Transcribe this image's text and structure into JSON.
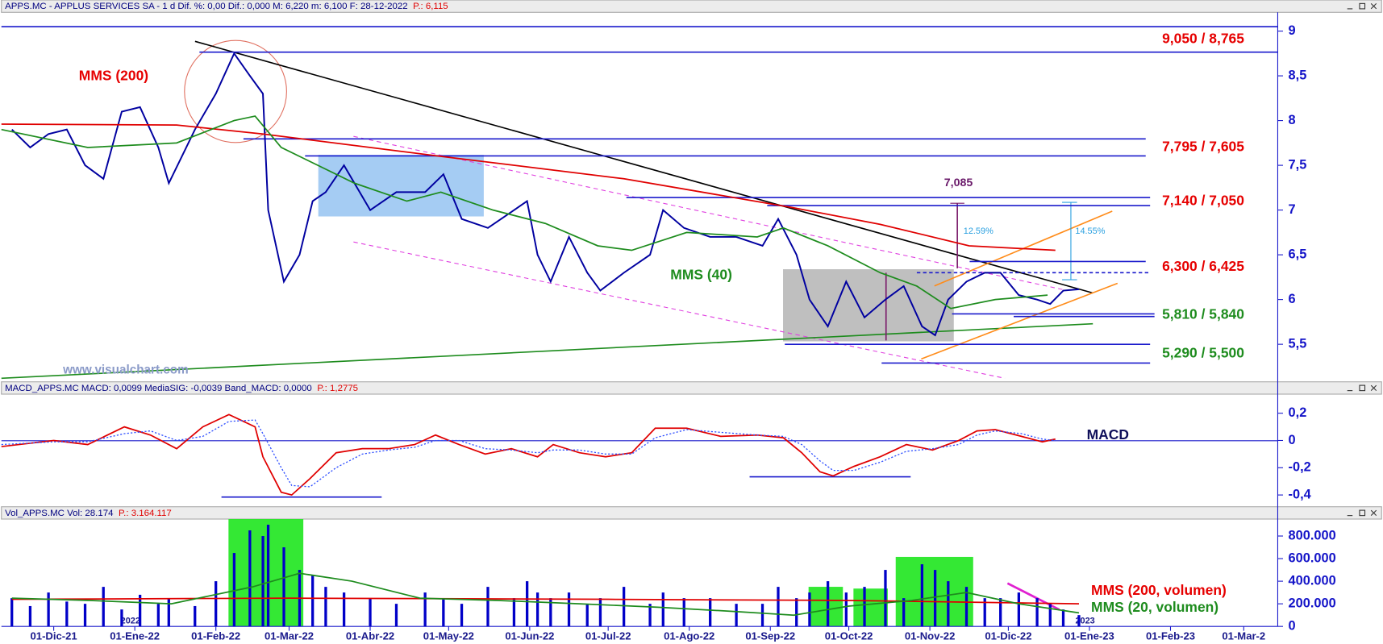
{
  "chart_data": [
    {
      "type": "line",
      "title": "APPS.MC - APPLUS SERVICES SA - 1 d  Dif. %: 0,00  Dif.: 0,000  M: 6,220  m: 6,100  F: 28-12-2022",
      "last": "P.: 6,115",
      "color": "#0000a0",
      "x": [
        "2021-11-15",
        "2021-11-22",
        "2021-11-29",
        "2021-12-06",
        "2021-12-13",
        "2021-12-20",
        "2021-12-27",
        "2022-01-03",
        "2022-01-10",
        "2022-01-14",
        "2022-01-24",
        "2022-02-01",
        "2022-02-08",
        "2022-02-14",
        "2022-02-19",
        "2022-02-21",
        "2022-02-27",
        "2022-03-05",
        "2022-03-10",
        "2022-03-15",
        "2022-03-22",
        "2022-04-01",
        "2022-04-11",
        "2022-04-22",
        "2022-04-29",
        "2022-05-06",
        "2022-05-16",
        "2022-05-26",
        "2022-05-31",
        "2022-06-04",
        "2022-06-09",
        "2022-06-16",
        "2022-06-23",
        "2022-06-28",
        "2022-07-07",
        "2022-07-17",
        "2022-07-22",
        "2022-07-30",
        "2022-08-09",
        "2022-08-19",
        "2022-08-29",
        "2022-09-04",
        "2022-09-11",
        "2022-09-16",
        "2022-09-23",
        "2022-09-30",
        "2022-10-07",
        "2022-10-15",
        "2022-10-22",
        "2022-10-29",
        "2022-11-03",
        "2022-11-08",
        "2022-11-15",
        "2022-11-22",
        "2022-11-28",
        "2022-12-05",
        "2022-12-12",
        "2022-12-17",
        "2022-12-22",
        "2022-12-28"
      ],
      "values": [
        7.9,
        7.7,
        7.85,
        7.9,
        7.5,
        7.35,
        8.1,
        8.15,
        7.7,
        7.3,
        7.9,
        8.3,
        8.75,
        8.5,
        8.3,
        7.0,
        6.2,
        6.5,
        7.1,
        7.2,
        7.5,
        7.0,
        7.2,
        7.2,
        7.4,
        6.9,
        6.8,
        7.0,
        7.1,
        6.5,
        6.2,
        6.7,
        6.3,
        6.1,
        6.3,
        6.5,
        7.0,
        6.8,
        6.7,
        6.7,
        6.6,
        6.9,
        6.5,
        6.0,
        5.7,
        6.2,
        5.8,
        6.0,
        6.15,
        5.7,
        5.6,
        6.0,
        6.2,
        6.3,
        6.3,
        6.05,
        6.0,
        5.95,
        6.1,
        6.115
      ],
      "series": [
        {
          "name": "MMS (200)",
          "color": "#e00000",
          "x": [
            "2021-11-11",
            "2022-01-17",
            "2022-02-19",
            "2022-04-28",
            "2022-07-07",
            "2022-09-09",
            "2022-10-13",
            "2022-11-16",
            "2022-12-19"
          ],
          "values": [
            7.96,
            7.95,
            7.85,
            7.6,
            7.35,
            7.03,
            6.84,
            6.6,
            6.55
          ]
        },
        {
          "name": "MMS (40)",
          "color": "#1e8c1e",
          "x": [
            "2021-11-11",
            "2021-12-14",
            "2022-01-17",
            "2022-02-08",
            "2022-02-16",
            "2022-02-26",
            "2022-03-26",
            "2022-04-15",
            "2022-04-28",
            "2022-05-18",
            "2022-06-07",
            "2022-06-27",
            "2022-07-10",
            "2022-07-31",
            "2022-08-27",
            "2022-09-06",
            "2022-09-23",
            "2022-10-13",
            "2022-10-27",
            "2022-11-09",
            "2022-11-26",
            "2022-12-16"
          ],
          "values": [
            7.9,
            7.7,
            7.75,
            8.0,
            8.05,
            7.7,
            7.3,
            7.1,
            7.2,
            7.0,
            6.85,
            6.6,
            6.55,
            6.75,
            6.7,
            6.8,
            6.6,
            6.3,
            6.15,
            5.9,
            6.0,
            6.05
          ]
        }
      ],
      "levels": [
        {
          "label": "9,050 / 8,765",
          "color": "#e60000",
          "values": [
            9.05,
            8.765
          ]
        },
        {
          "label": "7,795 / 7,605",
          "color": "#e60000",
          "values": [
            7.795,
            7.605
          ]
        },
        {
          "label": "7,140 / 7,050",
          "color": "#e60000",
          "values": [
            7.14,
            7.05
          ]
        },
        {
          "label": "6,300 / 6,425",
          "color": "#e60000",
          "values": [
            6.3,
            6.425
          ]
        },
        {
          "label": "5,810 / 5,840",
          "color": "#1e8c1e",
          "values": [
            5.81,
            5.84
          ]
        },
        {
          "label": "5,290 / 5,500",
          "color": "#1e8c1e",
          "values": [
            5.29,
            5.5
          ]
        }
      ],
      "annotations": [
        "7,085",
        "12.59%",
        "14.55%",
        "www.visualchart.com"
      ],
      "xlim": [
        "2021-11-11",
        "2023-03-14"
      ],
      "ylim": [
        5.1,
        9.2
      ],
      "yticks": [
        {
          "value": 5.5,
          "label": "5,5"
        },
        6,
        {
          "value": 6.5,
          "label": "6,5"
        },
        7,
        {
          "value": 7.5,
          "label": "7,5"
        },
        8,
        {
          "value": 8.5,
          "label": "8,5"
        },
        9
      ]
    },
    {
      "type": "line",
      "title": "MACD_APPS.MC  MACD: 0,0099  MediaSIG: -0,0039  Band_MACD: 0,0000",
      "last": "P.: 1,2775",
      "x": [
        "2021-11-11",
        "2021-12-01",
        "2021-12-14",
        "2021-12-28",
        "2022-01-07",
        "2022-01-17",
        "2022-01-27",
        "2022-02-06",
        "2022-02-16",
        "2022-02-19",
        "2022-02-26",
        "2022-03-02",
        "2022-03-09",
        "2022-03-19",
        "2022-03-29",
        "2022-04-08",
        "2022-04-18",
        "2022-04-26",
        "2022-05-05",
        "2022-05-15",
        "2022-05-25",
        "2022-06-04",
        "2022-06-10",
        "2022-06-20",
        "2022-06-30",
        "2022-07-10",
        "2022-07-19",
        "2022-07-31",
        "2022-08-13",
        "2022-08-27",
        "2022-09-06",
        "2022-09-13",
        "2022-09-20",
        "2022-09-25",
        "2022-10-03",
        "2022-10-13",
        "2022-10-23",
        "2022-11-02",
        "2022-11-12",
        "2022-11-19",
        "2022-11-26",
        "2022-12-06",
        "2022-12-14",
        "2022-12-19"
      ],
      "series": [
        {
          "color": "#e00000",
          "values": [
            -0.045,
            0,
            -0.03,
            0.1,
            0.04,
            -0.06,
            0.1,
            0.19,
            0.1,
            -0.12,
            -0.38,
            -0.4,
            -0.28,
            -0.09,
            -0.06,
            -0.06,
            -0.03,
            0.04,
            -0.03,
            -0.1,
            -0.06,
            -0.12,
            -0.03,
            -0.09,
            -0.12,
            -0.09,
            0.09,
            0.09,
            0.03,
            0.04,
            0.02,
            -0.09,
            -0.23,
            -0.26,
            -0.19,
            -0.12,
            -0.03,
            -0.07,
            0,
            0.07,
            0.08,
            0.03,
            -0.01,
            0.01
          ]
        },
        {
          "color": "#3050ff",
          "style": "dotted",
          "values": [
            -0.03,
            -0.01,
            -0.01,
            0.05,
            0.07,
            0,
            0.03,
            0.14,
            0.15,
            0.05,
            -0.2,
            -0.33,
            -0.34,
            -0.2,
            -0.1,
            -0.07,
            -0.05,
            0,
            0,
            -0.06,
            -0.07,
            -0.09,
            -0.07,
            -0.07,
            -0.1,
            -0.1,
            0.02,
            0.08,
            0.06,
            0.04,
            0.03,
            -0.03,
            -0.15,
            -0.22,
            -0.22,
            -0.16,
            -0.08,
            -0.06,
            -0.03,
            0.04,
            0.07,
            0.05,
            0.01,
            0
          ]
        }
      ],
      "annotations": [
        "MACD"
      ],
      "xlim": [
        "2021-11-11",
        "2023-03-14"
      ],
      "ylim": [
        -0.48,
        0.34
      ],
      "yticks": [
        {
          "value": -0.4,
          "label": "-0,4"
        },
        {
          "value": -0.2,
          "label": "-0,2"
        },
        0,
        {
          "value": 0.2,
          "label": "0,2"
        }
      ]
    },
    {
      "type": "bar",
      "title": "Vol_APPS.MC  Vol: 28.174",
      "last": "P.: 3.164.117",
      "color": "#0000c8",
      "x": [
        "2021-11-15",
        "2021-11-22",
        "2021-11-29",
        "2021-12-06",
        "2021-12-13",
        "2021-12-20",
        "2021-12-27",
        "2022-01-03",
        "2022-01-10",
        "2022-01-14",
        "2022-01-24",
        "2022-02-01",
        "2022-02-08",
        "2022-02-14",
        "2022-02-19",
        "2022-02-21",
        "2022-02-27",
        "2022-03-05",
        "2022-03-10",
        "2022-03-15",
        "2022-03-22",
        "2022-04-01",
        "2022-04-11",
        "2022-04-22",
        "2022-04-29",
        "2022-05-06",
        "2022-05-16",
        "2022-05-26",
        "2022-05-31",
        "2022-06-04",
        "2022-06-09",
        "2022-06-16",
        "2022-06-23",
        "2022-06-28",
        "2022-07-07",
        "2022-07-17",
        "2022-07-22",
        "2022-07-30",
        "2022-08-09",
        "2022-08-19",
        "2022-08-29",
        "2022-09-04",
        "2022-09-11",
        "2022-09-16",
        "2022-09-23",
        "2022-09-30",
        "2022-10-07",
        "2022-10-15",
        "2022-10-22",
        "2022-10-29",
        "2022-11-03",
        "2022-11-08",
        "2022-11-15",
        "2022-11-22",
        "2022-11-28",
        "2022-12-05",
        "2022-12-12",
        "2022-12-17",
        "2022-12-22",
        "2022-12-28"
      ],
      "values": [
        250000,
        180000,
        300000,
        220000,
        200000,
        350000,
        150000,
        280000,
        200000,
        250000,
        180000,
        400000,
        650000,
        850000,
        800000,
        900000,
        700000,
        500000,
        450000,
        350000,
        300000,
        250000,
        200000,
        300000,
        250000,
        200000,
        350000,
        250000,
        400000,
        300000,
        250000,
        300000,
        200000,
        250000,
        350000,
        200000,
        300000,
        250000,
        250000,
        200000,
        200000,
        350000,
        250000,
        300000,
        400000,
        300000,
        350000,
        500000,
        250000,
        550000,
        500000,
        400000,
        350000,
        250000,
        250000,
        300000,
        250000,
        200000,
        150000,
        100000
      ],
      "series": [
        {
          "name": "MMS (200, volumen)",
          "color": "#e00000",
          "x": [
            "2021-11-15",
            "2022-03-01",
            "2022-07-01",
            "2022-10-01",
            "2022-12-28"
          ],
          "values": [
            240000,
            250000,
            240000,
            230000,
            200000
          ]
        },
        {
          "name": "MMS (20, volumen)",
          "color": "#1e8c1e",
          "x": [
            "2021-11-15",
            "2021-12-15",
            "2022-01-15",
            "2022-02-15",
            "2022-03-05",
            "2022-03-25",
            "2022-04-20",
            "2022-05-20",
            "2022-06-20",
            "2022-07-20",
            "2022-08-20",
            "2022-09-10",
            "2022-10-01",
            "2022-10-25",
            "2022-11-15",
            "2022-12-05",
            "2022-12-28"
          ],
          "values": [
            250000,
            230000,
            200000,
            350000,
            470000,
            400000,
            250000,
            230000,
            200000,
            170000,
            130000,
            100000,
            180000,
            230000,
            300000,
            200000,
            120000
          ]
        }
      ],
      "xlim": [
        "2021-11-11",
        "2023-03-14"
      ],
      "ylim": [
        0,
        950000
      ],
      "yticks": [
        0,
        {
          "value": 200000,
          "label": "200.000"
        },
        {
          "value": 400000,
          "label": "400.000"
        },
        {
          "value": 600000,
          "label": "600.000"
        },
        {
          "value": 800000,
          "label": "800.000"
        }
      ],
      "xticks": [
        {
          "value": "2021-12-01",
          "label": "01-Dic-21"
        },
        {
          "value": "2022-01-01",
          "label": "01-Ene-22"
        },
        {
          "value": "2022-02-01",
          "label": "01-Feb-22"
        },
        {
          "value": "2022-03-01",
          "label": "01-Mar-22"
        },
        {
          "value": "2022-04-01",
          "label": "01-Abr-22"
        },
        {
          "value": "2022-05-01",
          "label": "01-May-22"
        },
        {
          "value": "2022-06-01",
          "label": "01-Jun-22"
        },
        {
          "value": "2022-07-01",
          "label": "01-Jul-22"
        },
        {
          "value": "2022-08-01",
          "label": "01-Ago-22"
        },
        {
          "value": "2022-09-01",
          "label": "01-Sep-22"
        },
        {
          "value": "2022-10-01",
          "label": "01-Oct-22"
        },
        {
          "value": "2022-11-01",
          "label": "01-Nov-22"
        },
        {
          "value": "2022-12-01",
          "label": "01-Dic-22"
        },
        {
          "value": "2023-01-01",
          "label": "01-Ene-23"
        },
        {
          "value": "2023-02-01",
          "label": "01-Feb-23"
        },
        {
          "value": "2023-03-01",
          "label": "01-Mar-2"
        }
      ],
      "year_ticks": [
        {
          "value": "2022-01-01",
          "label": "2022"
        },
        {
          "value": "2023-01-01",
          "label": "2023"
        }
      ]
    }
  ]
}
